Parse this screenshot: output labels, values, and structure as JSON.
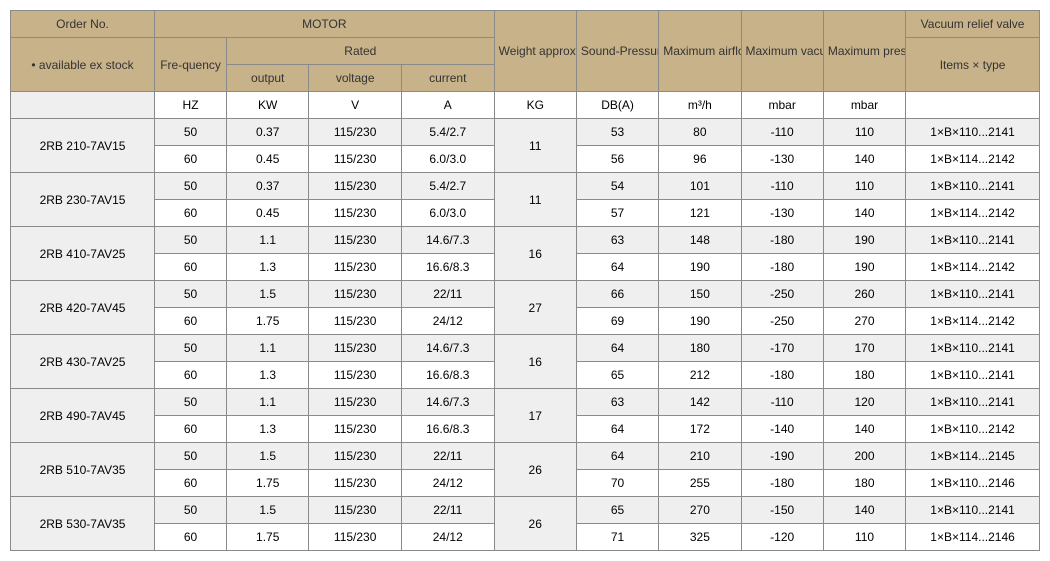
{
  "headers": {
    "order_no": "Order No.",
    "available": "• available ex stock",
    "motor": "MOTOR",
    "frequency": "Fre-quency",
    "rated": "Rated",
    "output": "output",
    "voltage": "voltage",
    "current": "current",
    "weight": "Weight approx",
    "sound": "Sound-Pressure level",
    "max_airflow": "Maximum airflow",
    "max_vacuum": "Maximum vacuum",
    "max_pressure": "Maximum pressure",
    "vacuum_relief": "Vacuum relief valve",
    "items_type": "Items × type"
  },
  "units": {
    "frequency": "HZ",
    "output": "KW",
    "voltage": "V",
    "current": "A",
    "weight": "KG",
    "sound": "DB(A)",
    "airflow": "m³/h",
    "vacuum": "mbar",
    "pressure": "mbar",
    "valve": ""
  },
  "products": [
    {
      "order": "2RB 210-7AV15",
      "rows": [
        {
          "freq": "50",
          "out": "0.37",
          "volt": "115/230",
          "curr": "5.4/2.7",
          "sound": "53",
          "air": "80",
          "vac": "-110",
          "pres": "110",
          "valve": "1×B×110...2141"
        },
        {
          "freq": "60",
          "out": "0.45",
          "volt": "115/230",
          "curr": "6.0/3.0",
          "sound": "56",
          "air": "96",
          "vac": "-130",
          "pres": "140",
          "valve": "1×B×114...2142"
        }
      ],
      "weight": "11"
    },
    {
      "order": "2RB 230-7AV15",
      "rows": [
        {
          "freq": "50",
          "out": "0.37",
          "volt": "115/230",
          "curr": "5.4/2.7",
          "sound": "54",
          "air": "101",
          "vac": "-110",
          "pres": "110",
          "valve": "1×B×110...2141"
        },
        {
          "freq": "60",
          "out": "0.45",
          "volt": "115/230",
          "curr": "6.0/3.0",
          "sound": "57",
          "air": "121",
          "vac": "-130",
          "pres": "140",
          "valve": "1×B×114...2142"
        }
      ],
      "weight": "11"
    },
    {
      "order": "2RB 410-7AV25",
      "rows": [
        {
          "freq": "50",
          "out": "1.1",
          "volt": "115/230",
          "curr": "14.6/7.3",
          "sound": "63",
          "air": "148",
          "vac": "-180",
          "pres": "190",
          "valve": "1×B×110...2141"
        },
        {
          "freq": "60",
          "out": "1.3",
          "volt": "115/230",
          "curr": "16.6/8.3",
          "sound": "64",
          "air": "190",
          "vac": "-180",
          "pres": "190",
          "valve": "1×B×114...2142"
        }
      ],
      "weight": "16"
    },
    {
      "order": "2RB 420-7AV45",
      "rows": [
        {
          "freq": "50",
          "out": "1.5",
          "volt": "115/230",
          "curr": "22/11",
          "sound": "66",
          "air": "150",
          "vac": "-250",
          "pres": "260",
          "valve": "1×B×110...2141"
        },
        {
          "freq": "60",
          "out": "1.75",
          "volt": "115/230",
          "curr": "24/12",
          "sound": "69",
          "air": "190",
          "vac": "-250",
          "pres": "270",
          "valve": "1×B×114...2142"
        }
      ],
      "weight": "27"
    },
    {
      "order": "2RB 430-7AV25",
      "rows": [
        {
          "freq": "50",
          "out": "1.1",
          "volt": "115/230",
          "curr": "14.6/7.3",
          "sound": "64",
          "air": "180",
          "vac": "-170",
          "pres": "170",
          "valve": "1×B×110...2141"
        },
        {
          "freq": "60",
          "out": "1.3",
          "volt": "115/230",
          "curr": "16.6/8.3",
          "sound": "65",
          "air": "212",
          "vac": "-180",
          "pres": "180",
          "valve": "1×B×110...2141"
        }
      ],
      "weight": "16"
    },
    {
      "order": "2RB 490-7AV45",
      "rows": [
        {
          "freq": "50",
          "out": "1.1",
          "volt": "115/230",
          "curr": "14.6/7.3",
          "sound": "63",
          "air": "142",
          "vac": "-110",
          "pres": "120",
          "valve": "1×B×110...2141"
        },
        {
          "freq": "60",
          "out": "1.3",
          "volt": "115/230",
          "curr": "16.6/8.3",
          "sound": "64",
          "air": "172",
          "vac": "-140",
          "pres": "140",
          "valve": "1×B×110...2142"
        }
      ],
      "weight": "17"
    },
    {
      "order": "2RB 510-7AV35",
      "rows": [
        {
          "freq": "50",
          "out": "1.5",
          "volt": "115/230",
          "curr": "22/11",
          "sound": "64",
          "air": "210",
          "vac": "-190",
          "pres": "200",
          "valve": "1×B×114...2145"
        },
        {
          "freq": "60",
          "out": "1.75",
          "volt": "115/230",
          "curr": "24/12",
          "sound": "70",
          "air": "255",
          "vac": "-180",
          "pres": "180",
          "valve": "1×B×110...2146"
        }
      ],
      "weight": "26"
    },
    {
      "order": "2RB 530-7AV35",
      "rows": [
        {
          "freq": "50",
          "out": "1.5",
          "volt": "115/230",
          "curr": "22/11",
          "sound": "65",
          "air": "270",
          "vac": "-150",
          "pres": "140",
          "valve": "1×B×110...2141"
        },
        {
          "freq": "60",
          "out": "1.75",
          "volt": "115/230",
          "curr": "24/12",
          "sound": "71",
          "air": "325",
          "vac": "-120",
          "pres": "110",
          "valve": "1×B×114...2146"
        }
      ],
      "weight": "26"
    }
  ],
  "colors": {
    "header_bg": "#c8b28a",
    "light_bg": "#efefef",
    "border": "#8a8a8a"
  }
}
